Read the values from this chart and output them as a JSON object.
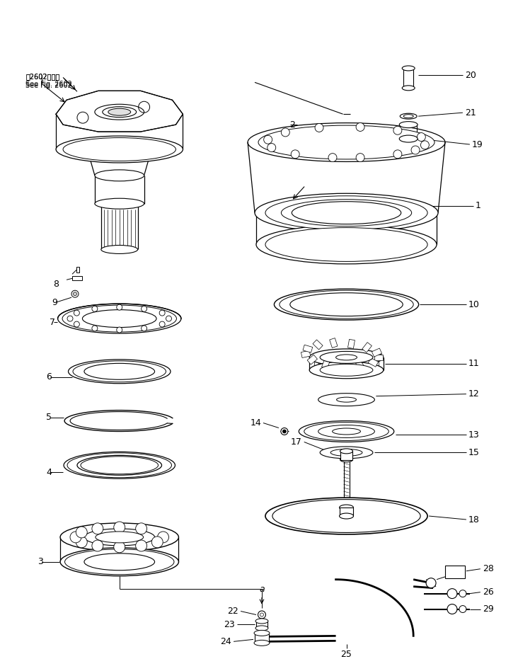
{
  "background_color": "#ffffff",
  "line_color": "#000000",
  "fig_width": 7.32,
  "fig_height": 9.48,
  "dpi": 100,
  "note_line1": "第2602図参照",
  "note_line2": "See Fig. 2602"
}
